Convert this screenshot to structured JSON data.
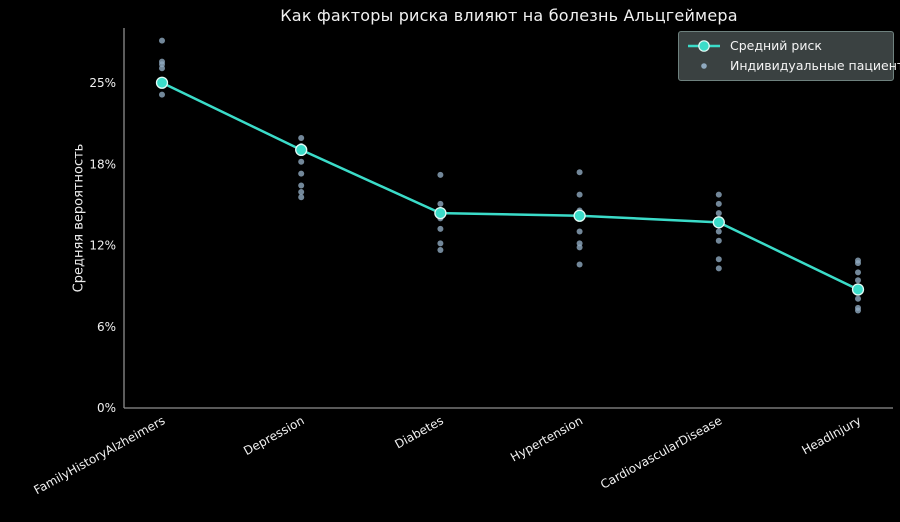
{
  "colors": {
    "background": "#000000",
    "accent": "#3BDCC9",
    "accent_marker_edge": "#E3FBF6",
    "scatter": "#8FA9BF",
    "axis": "#8E8E8E",
    "text": "#F0F0F0",
    "legend_bg": "#3A4141",
    "legend_border": "#6E817E"
  },
  "chart_data": {
    "type": "line",
    "title": "Как факторы риска влияют на болезнь Альцгеймера",
    "xlabel": "",
    "ylabel": "Средняя вероятность",
    "categories": [
      "FamilyHistoryAlzheimers",
      "Depression",
      "Diabetes",
      "Hypertension",
      "CardiovascularDisease",
      "HeadInjury"
    ],
    "ytick_labels": [
      "0%",
      "6%",
      "12%",
      "18%",
      "25%"
    ],
    "ytick_values": [
      0,
      6.17,
      12.34,
      18.51,
      24.68
    ],
    "ylim": [
      0,
      28.7
    ],
    "grid": false,
    "legend_position": "upper right",
    "series": [
      {
        "name": "Средний риск",
        "type": "line",
        "values": [
          24.7,
          19.6,
          14.8,
          14.6,
          14.1,
          9.0
        ]
      },
      {
        "name": "Индивидуальные пациенты",
        "type": "scatter",
        "points_by_category": [
          [
            27.9,
            26.3,
            26.1,
            25.8,
            24.7,
            23.8
          ],
          [
            20.5,
            19.9,
            18.7,
            17.8,
            16.9,
            16.4,
            16.0
          ],
          [
            17.7,
            15.5,
            14.6,
            14.4,
            13.6,
            12.5,
            12.0
          ],
          [
            17.9,
            16.2,
            15.0,
            13.4,
            12.5,
            12.2,
            10.9
          ],
          [
            16.2,
            15.5,
            14.8,
            13.4,
            12.7,
            11.3,
            10.6
          ],
          [
            11.2,
            11.0,
            10.3,
            9.7,
            8.3,
            7.6,
            7.4
          ]
        ]
      }
    ]
  }
}
